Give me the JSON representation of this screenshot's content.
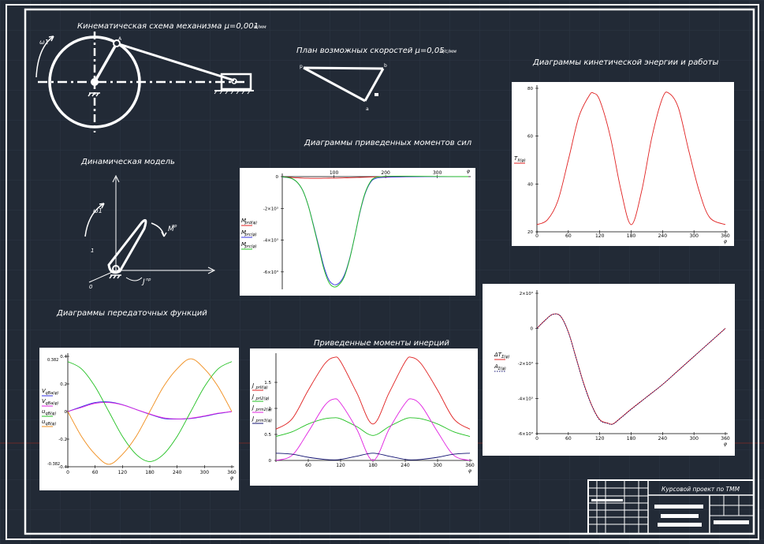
{
  "colors": {
    "background": "#222a36",
    "grid": "#2c3544",
    "frame": "#ffffff",
    "red": "#e02020",
    "green": "#20c020",
    "blue": "#3030e0",
    "magenta": "#e020e0",
    "orange": "#f08c1a",
    "navy": "#101070"
  },
  "titles": {
    "kinematic": "Кинематическая схема механизма μ=0,001 ",
    "kinematic_unit": "м/мм",
    "velocity_plan": "План возможных скоростей μ=0,05 ",
    "velocity_unit": "м/с/мм",
    "dynamic_model": "Динамическая модель",
    "transfer_functions": "Диаграммы передаточных функций",
    "reduced_moments_forces": "Диаграммы приведенных моментов сил",
    "reduced_inertia": "Приведенные моменты инерций",
    "kinetic_energy": "Диаграммы кинетической энергии и работы",
    "stamp": "Курсовой проект по ТММ"
  },
  "kinematic_labels": {
    "omega": "ω1",
    "point_a": "A"
  },
  "velocity_labels": {
    "p": "p",
    "b": "b",
    "a": "a"
  },
  "dynamic_labels": {
    "omega": "ω1",
    "moment": "M",
    "moment_sub": "пр",
    "inertia": "J",
    "inertia_sub": "пр",
    "point1": "1",
    "point0": "0"
  },
  "phi": "φ",
  "chart_data": [
    {
      "id": "transfer",
      "type": "line",
      "x": [
        0,
        30,
        60,
        90,
        120,
        150,
        180,
        210,
        240,
        270,
        300,
        330,
        360
      ],
      "xticks": [
        "0",
        "60",
        "120",
        "180",
        "240",
        "300",
        "360"
      ],
      "xlim": [
        0,
        360
      ],
      "ylim": [
        -0.4,
        0.4
      ],
      "yticks": [
        "0.4",
        "0.2",
        "0",
        "-0.2",
        "-0.4"
      ],
      "extra_labels": [
        "0.382",
        "-0.382"
      ],
      "legend": [
        "V",
        "V",
        "u",
        "u"
      ],
      "legend_sub": [
        "qBa(φ)",
        "qBa(φ)",
        "qB(φ)",
        "qB(φ)"
      ],
      "series": [
        {
          "color": "#3030e0",
          "values": [
            0,
            0.035,
            0.065,
            0.07,
            0.05,
            0.015,
            -0.02,
            -0.05,
            -0.055,
            -0.05,
            -0.035,
            -0.015,
            0
          ]
        },
        {
          "color": "#e020e0",
          "values": [
            0,
            0.03,
            0.06,
            0.065,
            0.048,
            0.015,
            -0.018,
            -0.045,
            -0.053,
            -0.048,
            -0.032,
            -0.012,
            0
          ]
        },
        {
          "color": "#20c020",
          "values": [
            0.362,
            0.31,
            0.18,
            0.0,
            -0.18,
            -0.31,
            -0.362,
            -0.31,
            -0.18,
            0.0,
            0.18,
            0.31,
            0.362
          ]
        },
        {
          "color": "#f08c1a",
          "values": [
            0,
            -0.18,
            -0.31,
            -0.382,
            -0.31,
            -0.18,
            0,
            0.18,
            0.31,
            0.382,
            0.31,
            0.18,
            0
          ]
        }
      ]
    },
    {
      "id": "moments",
      "type": "line",
      "x": [
        0,
        10,
        20,
        30,
        40,
        50,
        60,
        70,
        80,
        90,
        100,
        110,
        120,
        130,
        140,
        150,
        160,
        170,
        180,
        200,
        240,
        300,
        360
      ],
      "xticks": [
        "100",
        "200",
        "300"
      ],
      "xtick_values": [
        100,
        200,
        300
      ],
      "xlim": [
        0,
        360
      ],
      "ylim": [
        -7000,
        0
      ],
      "yticks": [
        "0",
        "-2×10³",
        "-4×10³",
        "-6×10³"
      ],
      "ytick_values": [
        0,
        -2000,
        -4000,
        -6000
      ],
      "legend": [
        "M",
        "M",
        "M"
      ],
      "legend_sub": [
        "prd(φ)",
        "prc(φ)",
        "prc(φ)"
      ],
      "series": [
        {
          "color": "#e02020",
          "values": [
            -30,
            -40,
            -60,
            -80,
            -95,
            -105,
            -110,
            -110,
            -105,
            -100,
            -95,
            -90,
            -80,
            -70,
            -60,
            -50,
            -40,
            -30,
            -20,
            -10,
            -5,
            -5,
            -5
          ]
        },
        {
          "color": "#3030e0",
          "values": [
            -30,
            -60,
            -150,
            -400,
            -900,
            -1800,
            -3000,
            -4300,
            -5600,
            -6500,
            -6800,
            -6700,
            -6200,
            -5200,
            -3800,
            -2300,
            -1100,
            -400,
            -120,
            -40,
            -10,
            -5,
            -5
          ]
        },
        {
          "color": "#20c020",
          "values": [
            -20,
            -55,
            -140,
            -390,
            -890,
            -1800,
            -3050,
            -4400,
            -5750,
            -6650,
            -6950,
            -6800,
            -6300,
            -5250,
            -3800,
            -2250,
            -1050,
            -350,
            -60,
            20,
            30,
            10,
            0
          ]
        }
      ]
    },
    {
      "id": "kinetic",
      "type": "line",
      "x": [
        0,
        20,
        40,
        60,
        80,
        100,
        108,
        120,
        140,
        160,
        180,
        200,
        220,
        240,
        252,
        270,
        290,
        310,
        330,
        360
      ],
      "xticks": [
        "0",
        "60",
        "120",
        "180",
        "240",
        "300",
        "360"
      ],
      "xlim": [
        0,
        360
      ],
      "ylim": [
        20,
        80
      ],
      "yticks": [
        "80",
        "60",
        "40",
        "20"
      ],
      "ytick_values": [
        80,
        60,
        40,
        20
      ],
      "legend": [
        "T"
      ],
      "legend_sub": [
        "II(φ)"
      ],
      "series": [
        {
          "color": "#e02020",
          "values": [
            23,
            25,
            33,
            50,
            68,
            77,
            78,
            75,
            60,
            38,
            23,
            37,
            60,
            76,
            78,
            72,
            54,
            37,
            26,
            23
          ]
        }
      ]
    },
    {
      "id": "inertia",
      "type": "line",
      "x": [
        0,
        30,
        60,
        90,
        108,
        120,
        150,
        180,
        210,
        240,
        252,
        270,
        300,
        330,
        360
      ],
      "xticks": [
        "60",
        "120",
        "180",
        "240",
        "300",
        "360"
      ],
      "xlim": [
        0,
        360
      ],
      "ylim": [
        0,
        2
      ],
      "yticks": [
        "1.5",
        "1",
        "0.5",
        "0"
      ],
      "ytick_values": [
        1.5,
        1,
        0.5,
        0
      ],
      "legend": [
        "J",
        "J",
        "J",
        "J"
      ],
      "legend_sub": [
        "prII(φ)",
        "prI2(φ)",
        "prm2(φ)",
        "prm3(φ)"
      ],
      "series": [
        {
          "color": "#e02020",
          "values": [
            0.6,
            0.8,
            1.35,
            1.85,
            1.98,
            1.9,
            1.3,
            0.7,
            1.3,
            1.9,
            1.98,
            1.85,
            1.35,
            0.8,
            0.6
          ]
        },
        {
          "color": "#20c020",
          "values": [
            0.46,
            0.55,
            0.7,
            0.8,
            0.82,
            0.8,
            0.65,
            0.48,
            0.65,
            0.8,
            0.82,
            0.8,
            0.7,
            0.55,
            0.46
          ]
        },
        {
          "color": "#e020e0",
          "values": [
            0.0,
            0.1,
            0.55,
            1.05,
            1.18,
            1.1,
            0.6,
            0.0,
            0.6,
            1.1,
            1.18,
            1.05,
            0.55,
            0.1,
            0.0
          ]
        },
        {
          "color": "#101070",
          "values": [
            0.14,
            0.12,
            0.06,
            0.02,
            0.01,
            0.02,
            0.08,
            0.14,
            0.08,
            0.02,
            0.01,
            0.02,
            0.06,
            0.12,
            0.14
          ]
        }
      ]
    },
    {
      "id": "work",
      "type": "line",
      "x": [
        0,
        15,
        30,
        45,
        60,
        75,
        90,
        105,
        120,
        135,
        145,
        160,
        180,
        210,
        240,
        270,
        300,
        330,
        360
      ],
      "xticks": [
        "0",
        "60",
        "120",
        "180",
        "240",
        "300",
        "360"
      ],
      "xlim": [
        0,
        360
      ],
      "ylim": [
        -6000,
        2000
      ],
      "yticks": [
        "2×10³",
        "0",
        "-2×10³",
        "-4×10³",
        "-6×10³"
      ],
      "ytick_values": [
        2000,
        0,
        -2000,
        -4000,
        -6000
      ],
      "legend": [
        "ΔT",
        "A"
      ],
      "legend_sub": [
        "Σ(φ)",
        "Σ(φ)"
      ],
      "series": [
        {
          "color": "#e02020",
          "values": [
            0,
            450,
            800,
            700,
            -200,
            -1700,
            -3200,
            -4400,
            -5200,
            -5400,
            -5450,
            -5100,
            -4600,
            -3900,
            -3200,
            -2400,
            -1600,
            -800,
            0
          ]
        },
        {
          "color": "#101070",
          "values": [
            0,
            440,
            790,
            690,
            -220,
            -1720,
            -3230,
            -4420,
            -5230,
            -5420,
            -5460,
            -5120,
            -4620,
            -3910,
            -3200,
            -2400,
            -1600,
            -800,
            0
          ]
        }
      ]
    }
  ]
}
